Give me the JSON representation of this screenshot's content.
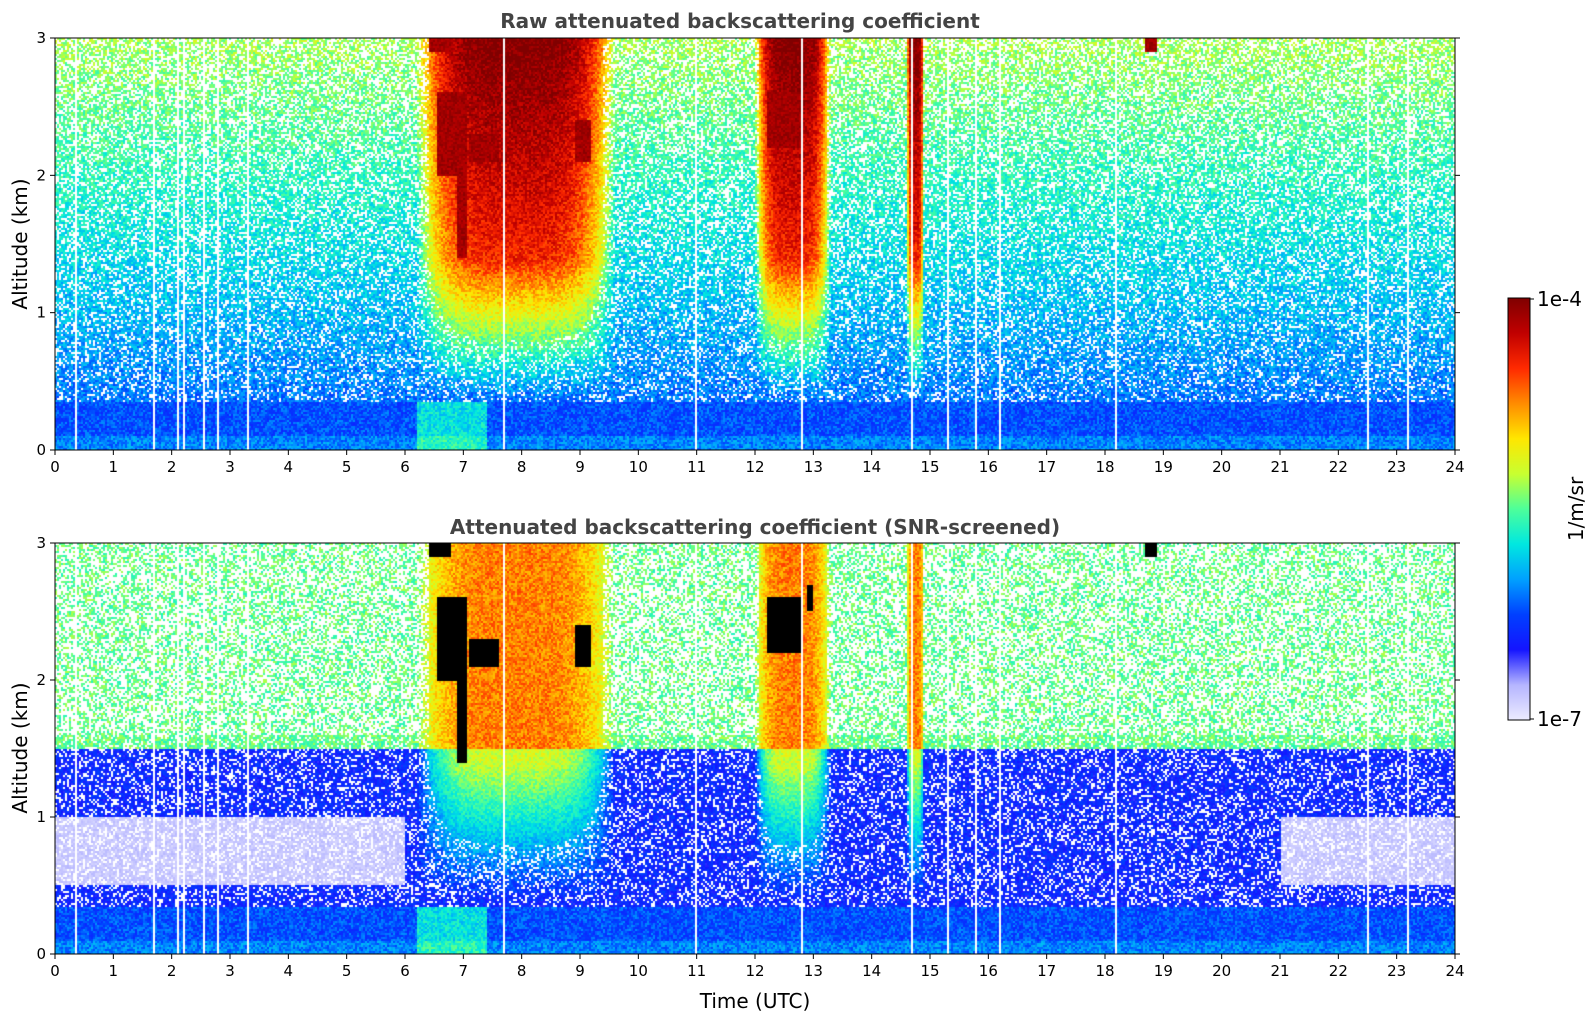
{
  "chart_data": [
    {
      "type": "heatmap",
      "title": "Raw attenuated backscattering coefficient",
      "xlabel": "",
      "ylabel": "Altitude (km)",
      "xlim": [
        0,
        24
      ],
      "ylim": [
        0,
        3
      ],
      "xticks": [
        "0",
        "1",
        "2",
        "3",
        "4",
        "5",
        "6",
        "7",
        "8",
        "9",
        "10",
        "11",
        "12",
        "13",
        "14",
        "15",
        "16",
        "17",
        "18",
        "19",
        "20",
        "21",
        "22",
        "23",
        "24"
      ],
      "yticks": [
        "0",
        "1",
        "2",
        "3"
      ],
      "screened": false,
      "features": {
        "aerosol_plumes": [
          {
            "t_start": 6.2,
            "t_end": 9.6,
            "alt_top": 3.0
          },
          {
            "t_start": 12.0,
            "t_end": 13.3,
            "alt_top": 3.0
          },
          {
            "t_start": 14.6,
            "t_end": 14.9,
            "alt_top": 3.0
          }
        ],
        "dense_layers": [
          {
            "t_start": 6.4,
            "t_end": 6.8,
            "alt_min": 2.9,
            "alt_max": 3.0
          },
          {
            "t_start": 6.55,
            "t_end": 7.05,
            "alt_min": 2.0,
            "alt_max": 2.6
          },
          {
            "t_start": 6.9,
            "t_end": 7.05,
            "alt_min": 1.4,
            "alt_max": 2.1
          },
          {
            "t_start": 7.1,
            "t_end": 7.6,
            "alt_min": 2.1,
            "alt_max": 2.3
          },
          {
            "t_start": 8.9,
            "t_end": 9.2,
            "alt_min": 2.1,
            "alt_max": 2.4
          },
          {
            "t_start": 12.2,
            "t_end": 12.8,
            "alt_min": 2.2,
            "alt_max": 2.6
          },
          {
            "t_start": 12.9,
            "t_end": 13.0,
            "alt_min": 2.5,
            "alt_max": 2.7
          },
          {
            "t_start": 18.7,
            "t_end": 18.9,
            "alt_min": 2.9,
            "alt_max": 3.0
          }
        ],
        "data_gaps": [
          0.35,
          0.45,
          0.65,
          0.72,
          1.7,
          2.1,
          2.2,
          2.55,
          2.8,
          3.3,
          4.9,
          7.7,
          11.0,
          12.0,
          12.8,
          14.7,
          15.3,
          15.8,
          16.2,
          17.9,
          18.2,
          21.5,
          22.5,
          23.2
        ]
      }
    },
    {
      "type": "heatmap",
      "title": "Attenuated backscattering coefficient (SNR-screened)",
      "xlabel": "Time (UTC)",
      "ylabel": "Altitude (km)",
      "xlim": [
        0,
        24
      ],
      "ylim": [
        0,
        3
      ],
      "xticks": [
        "0",
        "1",
        "2",
        "3",
        "4",
        "5",
        "6",
        "7",
        "8",
        "9",
        "10",
        "11",
        "12",
        "13",
        "14",
        "15",
        "16",
        "17",
        "18",
        "19",
        "20",
        "21",
        "22",
        "23",
        "24"
      ],
      "yticks": [
        "0",
        "1",
        "2",
        "3"
      ],
      "screened": true,
      "features": {
        "saturated_color": "#000000"
      }
    }
  ],
  "colorbar": {
    "label": "1/m/sr",
    "max_label": "1e-4",
    "min_label": "1e-7",
    "scale": "log",
    "colormap": "jet-white",
    "colors": [
      "#ecebff",
      "#b5b5ff",
      "#1414ff",
      "#0040ff",
      "#00a0ff",
      "#00e8e0",
      "#4dff9a",
      "#c8ff30",
      "#ffe600",
      "#ff8c00",
      "#ff2a00",
      "#c00000",
      "#800000"
    ]
  }
}
